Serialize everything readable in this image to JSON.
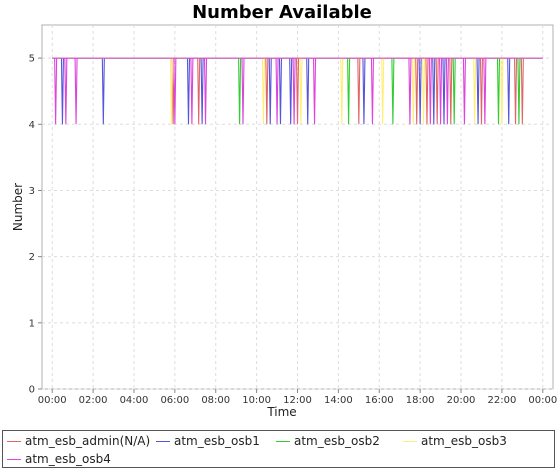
{
  "chart_data": {
    "type": "line",
    "title": "Number Available",
    "xlabel": "Time",
    "ylabel": "Number",
    "ylim": [
      0,
      5.5
    ],
    "yticks": [
      "0",
      "1",
      "2",
      "3",
      "4",
      "5"
    ],
    "xlim": [
      "-00:30",
      "24:30"
    ],
    "xticks": [
      "00:00",
      "02:00",
      "04:00",
      "06:00",
      "08:00",
      "10:00",
      "12:00",
      "14:00",
      "16:00",
      "18:00",
      "20:00",
      "22:00",
      "00:00"
    ],
    "grid": true,
    "legend_position": "bottom",
    "baseline": 5,
    "dip_to": 4,
    "series": [
      {
        "name": "atm_esb_admin(N/A)",
        "color": "#e06666",
        "dips": [
          "05:55",
          "07:10",
          "10:30",
          "12:00",
          "15:00",
          "17:50",
          "18:20",
          "18:50",
          "19:30",
          "21:00",
          "22:40",
          "23:00"
        ]
      },
      {
        "name": "atm_esb_osb1",
        "color": "#5555dd",
        "dips": [
          "00:30",
          "02:30",
          "06:40",
          "07:20",
          "10:40",
          "11:10",
          "11:40",
          "12:30",
          "15:15",
          "18:00",
          "18:40",
          "19:10",
          "20:50",
          "22:20"
        ]
      },
      {
        "name": "atm_esb_osb2",
        "color": "#33cc33",
        "dips": [
          "09:10",
          "14:30",
          "16:40",
          "19:40",
          "21:50",
          "22:50"
        ]
      },
      {
        "name": "atm_esb_osb3",
        "color": "#ffee77",
        "dips": [
          "05:50",
          "10:20",
          "12:10",
          "14:10",
          "16:10",
          "17:40",
          "18:10",
          "20:40",
          "22:00"
        ]
      },
      {
        "name": "atm_esb_osb4",
        "color": "#dd44dd",
        "dips": [
          "00:10",
          "00:40",
          "01:10",
          "06:00",
          "06:50",
          "07:30",
          "09:20",
          "11:00",
          "11:50",
          "12:50",
          "15:40",
          "17:30",
          "18:30",
          "19:00",
          "19:20",
          "20:10",
          "21:10"
        ]
      }
    ]
  }
}
